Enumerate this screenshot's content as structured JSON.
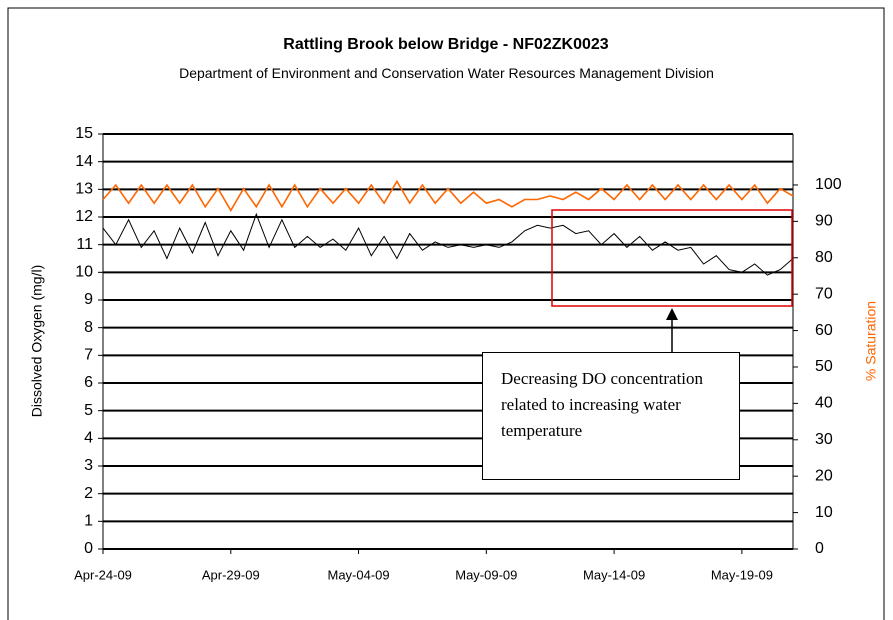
{
  "chart_data": {
    "type": "line",
    "title": "Rattling Brook below Bridge - NF02ZK0023",
    "subtitle": "Department of Environment and Conservation Water Resources Management Division",
    "y_label": "Dissolved Oxygen (mg/l)",
    "y2_label": "% Saturation",
    "annotation": "Decreasing DO concentration related to increasing water temperature",
    "categories": [
      "Apr-24-09",
      null,
      null,
      null,
      null,
      null,
      null,
      null,
      null,
      null,
      "Apr-29-09",
      null,
      null,
      null,
      null,
      null,
      null,
      null,
      null,
      null,
      "May-04-09",
      null,
      null,
      null,
      null,
      null,
      null,
      null,
      null,
      null,
      "May-09-09",
      null,
      null,
      null,
      null,
      null,
      null,
      null,
      null,
      null,
      "May-14-09",
      null,
      null,
      null,
      null,
      null,
      null,
      null,
      null,
      null,
      "May-19-09",
      null,
      null,
      null,
      null
    ],
    "series": [
      {
        "name": "Dissolved Oxygen",
        "color": "#000000",
        "values": [
          11.6,
          11.0,
          11.9,
          10.9,
          11.5,
          10.5,
          11.6,
          10.7,
          11.8,
          10.6,
          11.5,
          10.8,
          12.1,
          10.9,
          11.9,
          10.9,
          11.3,
          10.9,
          11.2,
          10.8,
          11.6,
          10.6,
          11.3,
          10.5,
          11.4,
          10.8,
          11.1,
          10.9,
          11.0,
          10.9,
          11.0,
          10.9,
          11.1,
          11.5,
          11.7,
          11.6,
          11.7,
          11.4,
          11.5,
          11.0,
          11.4,
          10.9,
          11.3,
          10.8,
          11.1,
          10.8,
          10.9,
          10.3,
          10.6,
          10.1,
          10.0,
          10.3,
          9.9,
          10.1,
          10.5
        ]
      },
      {
        "name": "% Saturation",
        "color": "#ff6600",
        "axis": "y2",
        "values": [
          96,
          100,
          95,
          100,
          95,
          100,
          95,
          100,
          94,
          99,
          93,
          99,
          94,
          100,
          94,
          100,
          94,
          99,
          95,
          99,
          95,
          100,
          95,
          101,
          95,
          100,
          95,
          99,
          95,
          98,
          95,
          96,
          94,
          96,
          96,
          97,
          96,
          98,
          96,
          99,
          96,
          100,
          96,
          100,
          96,
          100,
          96,
          100,
          96,
          100,
          96,
          100,
          95,
          99,
          97
        ]
      }
    ],
    "ylim": [
      0,
      15
    ],
    "yticks": [
      0,
      1,
      2,
      3,
      4,
      5,
      6,
      7,
      8,
      9,
      10,
      11,
      12,
      13,
      14,
      15
    ],
    "y2lim": [
      0,
      114
    ],
    "y2ticks": [
      0,
      10,
      20,
      30,
      40,
      50,
      60,
      70,
      80,
      90,
      100
    ],
    "grid": true
  }
}
